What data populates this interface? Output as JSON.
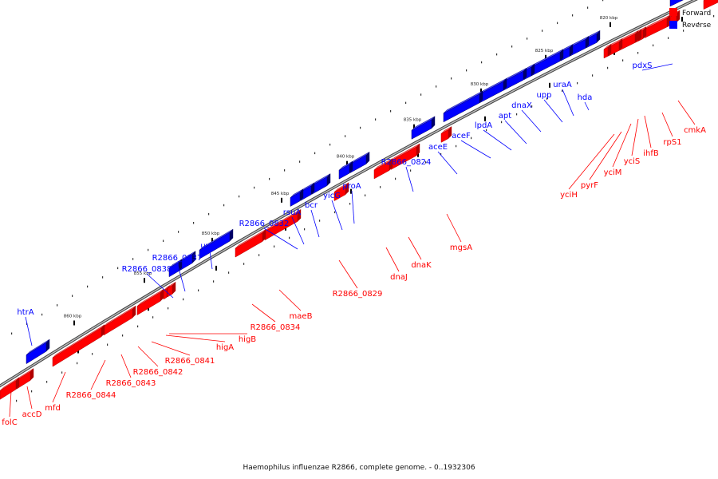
{
  "legend": {
    "forward_label": "Forward",
    "reverse_label": "Reverse",
    "forward_color": "#ff0000",
    "reverse_color": "#0000ff"
  },
  "caption": "Haemophilus influenzae R2866, complete genome. - 0..1932306",
  "map": {
    "backbone_color": "#6e6e6e",
    "tick_color": "#000000",
    "kbp_markers": [
      "815 kbp",
      "820 kbp",
      "825 kbp",
      "830 kbp",
      "835 kbp",
      "840 kbp",
      "845 kbp",
      "850 kbp",
      "855 kbp",
      "860 kbp"
    ]
  },
  "genes": {
    "reverse": [
      "pdxS",
      "hda",
      "uraA",
      "upp",
      "dnaX",
      "apt",
      "lpdA",
      "aceF",
      "aceE",
      "R2866_0824",
      "proA",
      "yicG",
      "bcr",
      "rsuA",
      "R2866_0832",
      "uvrB",
      "R2866_0837",
      "R2866_0838",
      "htrA"
    ],
    "forward": [
      "cmkA",
      "rpS1",
      "ihfB",
      "yciS",
      "yciM",
      "pyrF",
      "yciH",
      "mgsA",
      "dnaK",
      "dnaJ",
      "R2866_0829",
      "maeB",
      "R2866_0834",
      "higB",
      "higA",
      "R2866_0841",
      "R2866_0842",
      "R2866_0843",
      "R2866_0844",
      "mfd",
      "accD",
      "folC"
    ]
  }
}
